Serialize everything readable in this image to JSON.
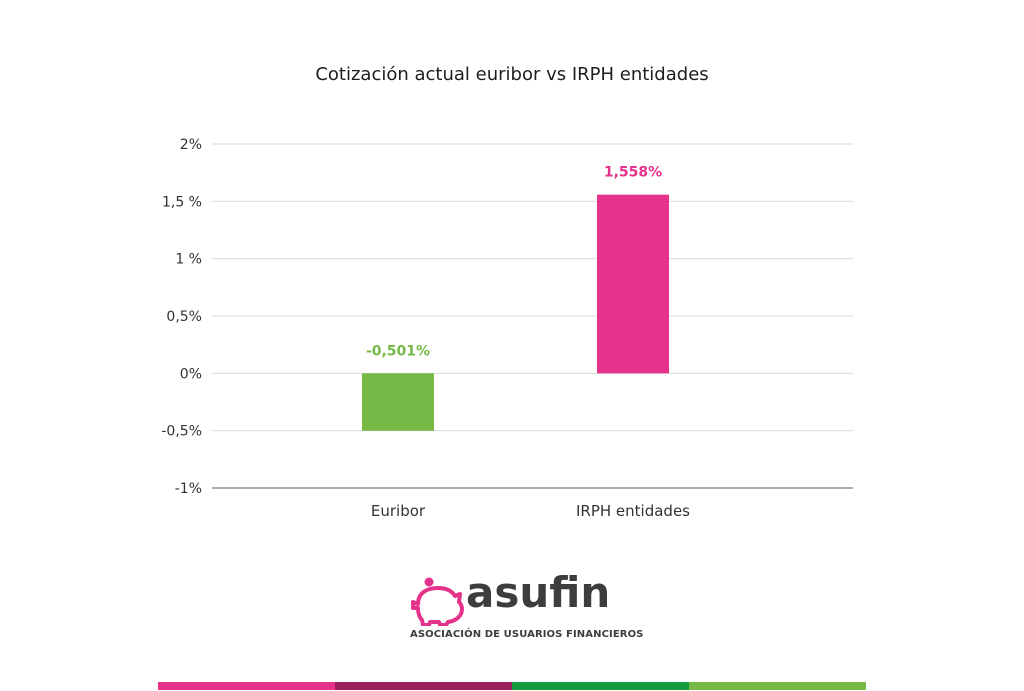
{
  "chart_data": {
    "type": "bar",
    "title": "Cotización actual euribor vs IRPH entidades",
    "categories": [
      "Euribor",
      "IRPH entidades"
    ],
    "values": [
      -0.501,
      1.558
    ],
    "data_labels": [
      "-0,501%",
      "1,558%"
    ],
    "bar_colors": [
      "#76b947",
      "#e5338b"
    ],
    "ylim": [
      -1,
      2
    ],
    "yticks": [
      {
        "value": 2,
        "label": "2%"
      },
      {
        "value": 1.5,
        "label": "1,5 %"
      },
      {
        "value": 1,
        "label": "1 %"
      },
      {
        "value": 0.5,
        "label": "0,5%"
      },
      {
        "value": 0,
        "label": "0%"
      },
      {
        "value": -0.5,
        "label": "-0,5%"
      },
      {
        "value": -1,
        "label": "-1%"
      }
    ],
    "grid": true,
    "legend": "none"
  },
  "logo": {
    "name": "asufin",
    "tagline": "ASOCIACIÓN DE USUARIOS FINANCIEROS",
    "icon": "piggy-bank-icon",
    "color": "#e5338b"
  },
  "footer": {
    "colors": [
      "#e5338b",
      "#9b1f5f",
      "#149a3f",
      "#76b947"
    ]
  }
}
